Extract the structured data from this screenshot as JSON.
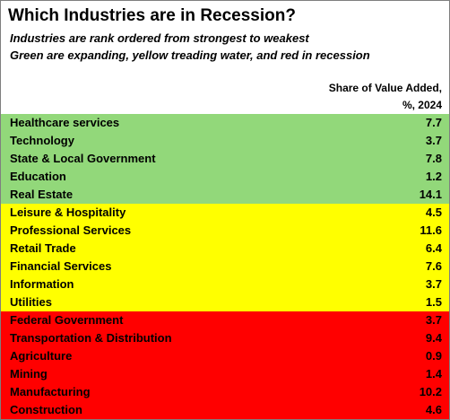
{
  "chart_data": {
    "type": "table",
    "title": "Which Industries are in Recession?",
    "subtitle_lines": [
      "Industries are rank ordered from strongest to weakest",
      "Green are expanding, yellow treading water, and red in recession"
    ],
    "column_header_lines": [
      "Share of Value Added,",
      "%, 2024"
    ],
    "status_colors": {
      "expanding": "#92d87a",
      "treading": "#ffff00",
      "recession": "#ff0000"
    },
    "rows": [
      {
        "industry": "Healthcare services",
        "value": "7.7",
        "status": "expanding"
      },
      {
        "industry": "Technology",
        "value": "3.7",
        "status": "expanding"
      },
      {
        "industry": "State & Local Government",
        "value": "7.8",
        "status": "expanding"
      },
      {
        "industry": "Education",
        "value": "1.2",
        "status": "expanding"
      },
      {
        "industry": "Real Estate",
        "value": "14.1",
        "status": "expanding"
      },
      {
        "industry": "Leisure & Hospitality",
        "value": "4.5",
        "status": "treading"
      },
      {
        "industry": "Professional Services",
        "value": "11.6",
        "status": "treading"
      },
      {
        "industry": "Retail Trade",
        "value": "6.4",
        "status": "treading"
      },
      {
        "industry": "Financial Services",
        "value": "7.6",
        "status": "treading"
      },
      {
        "industry": "Information",
        "value": "3.7",
        "status": "treading"
      },
      {
        "industry": "Utilities",
        "value": "1.5",
        "status": "treading"
      },
      {
        "industry": "Federal Government",
        "value": "3.7",
        "status": "recession"
      },
      {
        "industry": "Transportation & Distribution",
        "value": "9.4",
        "status": "recession"
      },
      {
        "industry": "Agriculture",
        "value": "0.9",
        "status": "recession"
      },
      {
        "industry": "Mining",
        "value": "1.4",
        "status": "recession"
      },
      {
        "industry": "Manufacturing",
        "value": "10.2",
        "status": "recession"
      },
      {
        "industry": "Construction",
        "value": "4.6",
        "status": "recession"
      }
    ]
  }
}
